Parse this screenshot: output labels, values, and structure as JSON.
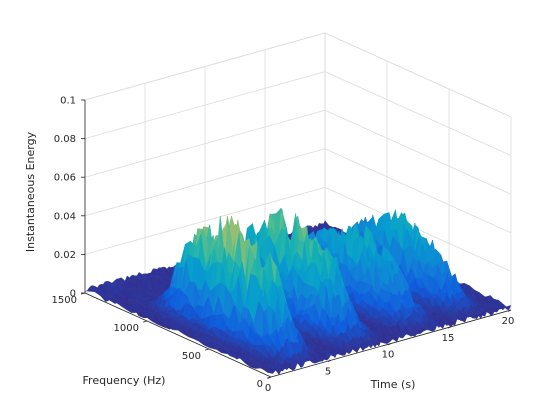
{
  "chart_data": {
    "type": "surface",
    "title": "",
    "xlabel": "Time (s)",
    "ylabel": "Frequency (Hz)",
    "zlabel": "Instantaneous Energy",
    "x_ticks": [
      0,
      5,
      10,
      15,
      20
    ],
    "y_ticks": [
      0,
      500,
      1000,
      1500
    ],
    "z_ticks": [
      "0",
      "0.02",
      "0.04",
      "0.06",
      "0.08",
      "0.1"
    ],
    "xlim": [
      0,
      20
    ],
    "ylim": [
      0,
      1500
    ],
    "zlim": [
      0,
      0.1
    ],
    "grid": true,
    "colormap": "parula",
    "bursts": [
      {
        "time_center": 3.0,
        "time_halfwidth": 1.4,
        "freq_low": 150,
        "freq_high": 1050,
        "peak_energy": 0.056
      },
      {
        "time_center": 8.0,
        "time_halfwidth": 1.5,
        "freq_low": 150,
        "freq_high": 1050,
        "peak_energy": 0.049
      },
      {
        "time_center": 13.0,
        "time_halfwidth": 1.5,
        "freq_low": 150,
        "freq_high": 1050,
        "peak_energy": 0.036
      },
      {
        "time_center": 17.0,
        "time_halfwidth": 1.3,
        "freq_low": 150,
        "freq_high": 1050,
        "peak_energy": 0.033
      }
    ],
    "noise_floor_energy": 0.003
  }
}
